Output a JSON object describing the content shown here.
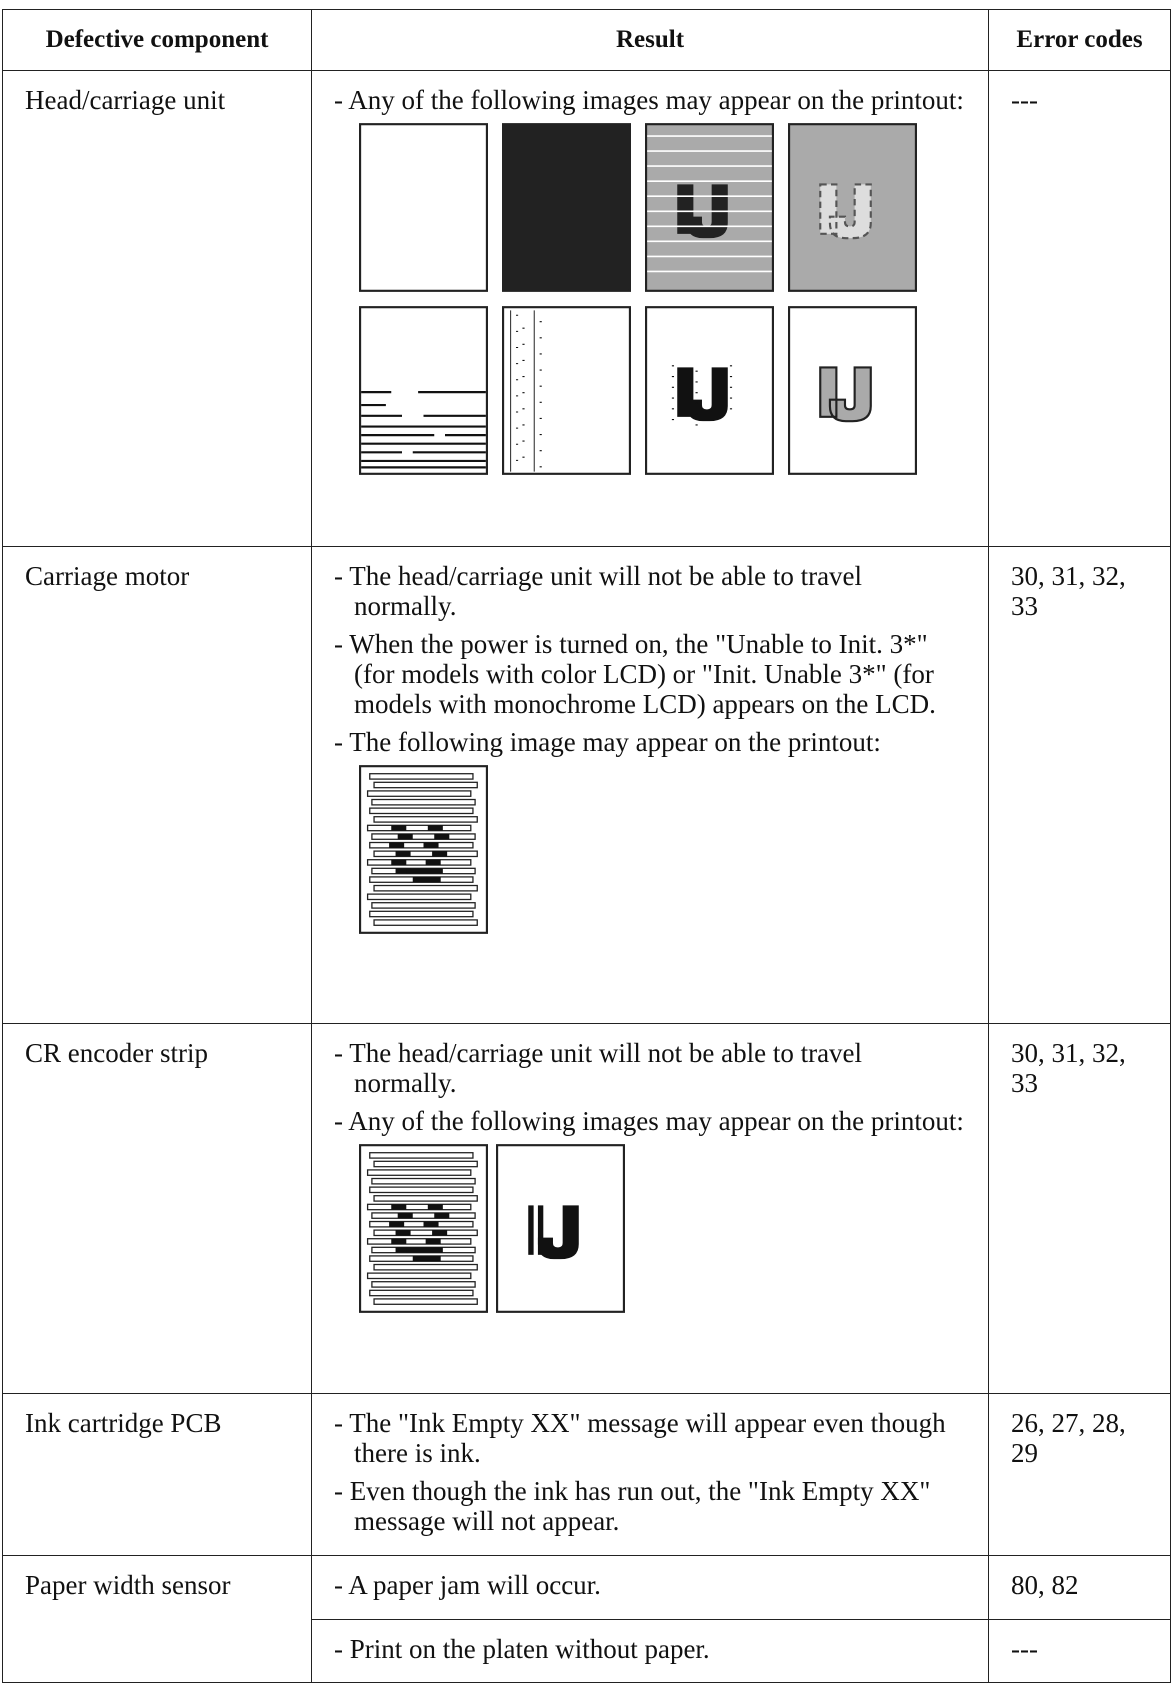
{
  "header": {
    "columns": [
      "Defective component",
      "Result",
      "Error codes"
    ]
  },
  "table": {
    "rows": [
      {
        "component": "Head/carriage unit",
        "cases": [
          {
            "results": [
              "- Any of the following images may appear on the printout:"
            ],
            "error_codes": "---"
          }
        ]
      },
      {
        "component": "Carriage motor",
        "cases": [
          {
            "results": [
              "- The head/carriage unit will not be able to travel normally.",
              "- When the power is turned on, the \"Unable to Init. 3*\" (for models with color LCD) or \"Init. Unable 3*\" (for models with monochrome LCD) appears on the LCD.",
              "- The following image may appear on the printout:"
            ],
            "error_codes": "30, 31, 32, 33"
          }
        ]
      },
      {
        "component": "CR encoder strip",
        "cases": [
          {
            "results": [
              "- The head/carriage unit will not be able to travel normally.",
              "- Any of the following images may appear on the printout:"
            ],
            "error_codes": "30, 31, 32, 33"
          }
        ]
      },
      {
        "component": "Ink cartridge PCB",
        "cases": [
          {
            "results": [
              "- The \"Ink Empty XX\" message will appear even though there is ink.",
              "- Even though the ink has run out, the \"Ink Empty XX\" message will not appear."
            ],
            "error_codes": "26, 27, 28, 29"
          }
        ]
      },
      {
        "component": "Paper width sensor",
        "cases": [
          {
            "results": [
              "- A paper jam will occur."
            ],
            "error_codes": "80, 82"
          },
          {
            "results": [
              "- Print on the platen without paper."
            ],
            "error_codes": "---"
          }
        ]
      }
    ]
  }
}
